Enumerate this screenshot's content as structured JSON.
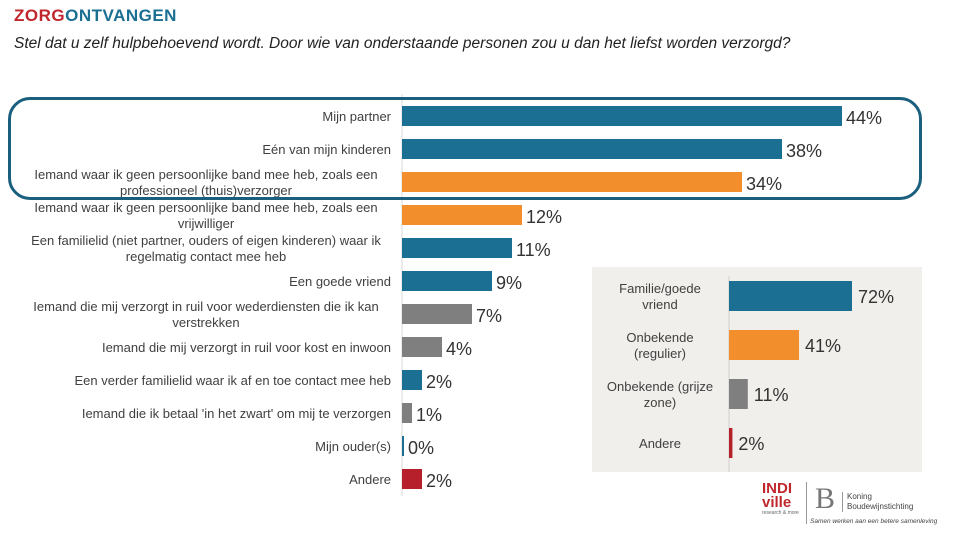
{
  "header": {
    "title_part1": "ZORG",
    "title_part2": "ONTVANGEN",
    "question": "Stel dat u zelf hulpbehoevend wordt. Door wie van onderstaande personen zou u dan het liefst worden verzorgd?"
  },
  "colors": {
    "blue": "#1b6f93",
    "orange": "#f28e2b",
    "gray": "#7f7f7f",
    "red": "#b5202a",
    "title_red": "#c0272d",
    "highlight_border": "#1b5f7e",
    "panel_bg": "#f1efeb"
  },
  "chart_data": [
    {
      "type": "bar",
      "orientation": "horizontal",
      "title": "",
      "xlim": [
        0,
        44
      ],
      "value_suffix": "%",
      "categories": [
        [
          "Mijn partner"
        ],
        [
          "Eén van mijn kinderen"
        ],
        [
          "Iemand waar ik geen persoonlijke band mee heb, zoals een",
          "professioneel (thuis)verzorger"
        ],
        [
          "Iemand waar ik geen persoonlijke band mee heb, zoals een",
          "vrijwilliger"
        ],
        [
          "Een familielid (niet partner, ouders of eigen kinderen) waar ik",
          "regelmatig contact mee heb"
        ],
        [
          "Een goede vriend"
        ],
        [
          "Iemand die mij verzorgt in ruil voor wederdiensten die ik kan",
          "verstrekken"
        ],
        [
          "Iemand die mij verzorgt in ruil voor kost en inwoon"
        ],
        [
          "Een verder familielid waar ik af en toe contact mee heb"
        ],
        [
          "Iemand die ik betaal 'in het zwart' om mij te verzorgen"
        ],
        [
          "Mijn ouder(s)"
        ],
        [
          "Andere"
        ]
      ],
      "values": [
        44,
        38,
        34,
        12,
        11,
        9,
        7,
        4,
        2,
        1,
        0,
        2
      ],
      "bar_colors": [
        "blue",
        "blue",
        "orange",
        "orange",
        "blue",
        "blue",
        "gray",
        "gray",
        "blue",
        "gray",
        "blue",
        "red"
      ],
      "highlighted_categories": [
        0,
        1,
        2
      ]
    },
    {
      "type": "bar",
      "orientation": "horizontal",
      "title": "",
      "xlim": [
        0,
        72
      ],
      "value_suffix": "%",
      "categories": [
        [
          "Familie/goede",
          "vriend"
        ],
        [
          "Onbekende",
          "(regulier)"
        ],
        [
          "Onbekende (grijze",
          "zone)"
        ],
        [
          "Andere"
        ]
      ],
      "values": [
        72,
        41,
        11,
        2
      ],
      "bar_colors": [
        "blue",
        "orange",
        "gray",
        "red"
      ]
    }
  ],
  "logos": {
    "indiville_line1": "INDI",
    "indiville_line2": "ville",
    "indiville_tagline": "research & more",
    "kb_initial": "B",
    "kb_name_line1": "Koning",
    "kb_name_line2": "Boudewijnstichting",
    "kb_tagline": "Samen werken aan een betere samenleving"
  }
}
